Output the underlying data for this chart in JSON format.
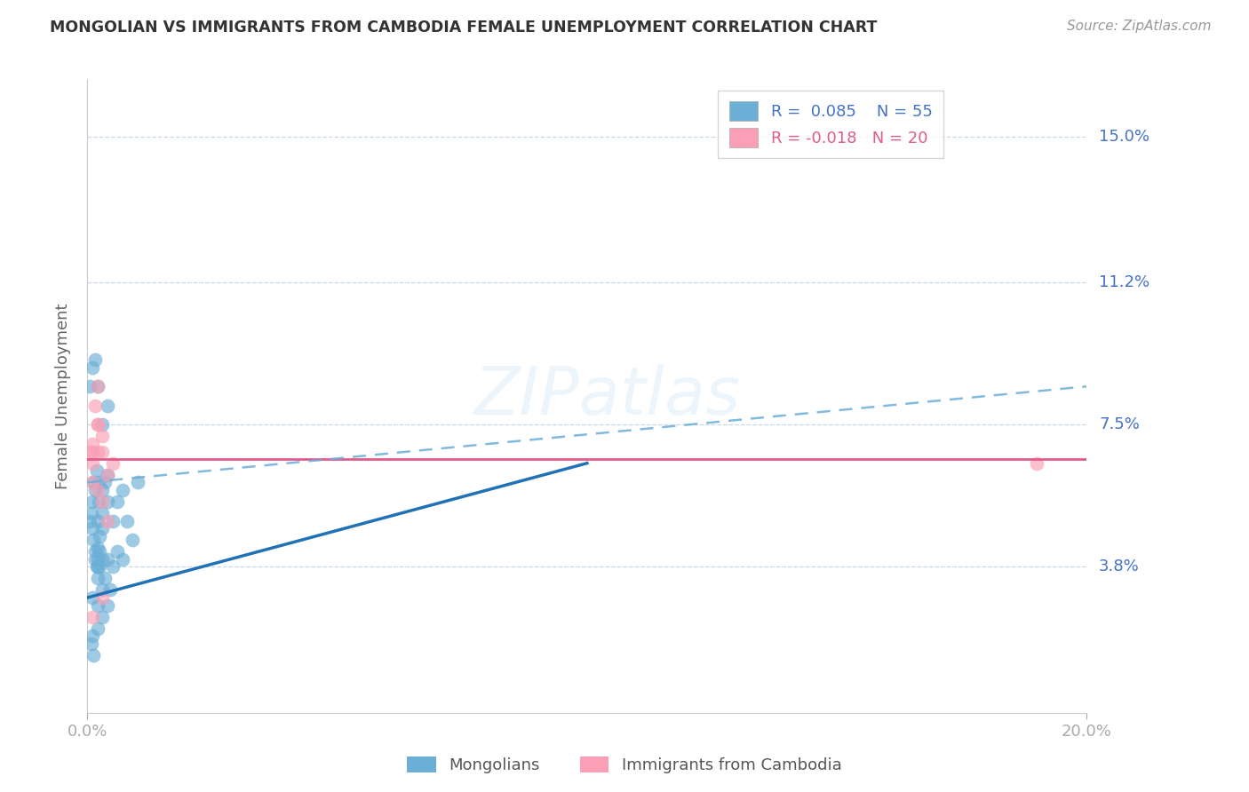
{
  "title": "MONGOLIAN VS IMMIGRANTS FROM CAMBODIA FEMALE UNEMPLOYMENT CORRELATION CHART",
  "source": "Source: ZipAtlas.com",
  "xlabel_ticks": [
    "0.0%",
    "20.0%"
  ],
  "ylabel_ticks": [
    "3.8%",
    "7.5%",
    "11.2%",
    "15.0%"
  ],
  "ylabel_values": [
    0.038,
    0.075,
    0.112,
    0.15
  ],
  "xmin": 0.0,
  "xmax": 0.2,
  "ymin": 0.0,
  "ymax": 0.165,
  "mongolian_R": 0.085,
  "mongolian_N": 55,
  "cambodia_R": -0.018,
  "cambodia_N": 20,
  "blue_color": "#6baed6",
  "pink_color": "#fa9fb5",
  "blue_line_color": "#2171b5",
  "pink_line_color": "#e05c8a",
  "dashed_line_color": "#6baed6",
  "watermark": "ZIPatlas",
  "legend_label_mongolian": "Mongolians",
  "legend_label_cambodia": "Immigrants from Cambodia",
  "mongolian_x": [
    0.0005,
    0.0008,
    0.001,
    0.001,
    0.0012,
    0.0012,
    0.0015,
    0.0015,
    0.0015,
    0.0018,
    0.0018,
    0.002,
    0.002,
    0.002,
    0.002,
    0.002,
    0.0022,
    0.0022,
    0.0025,
    0.0025,
    0.0025,
    0.003,
    0.003,
    0.003,
    0.003,
    0.0035,
    0.0035,
    0.004,
    0.004,
    0.004,
    0.0045,
    0.005,
    0.005,
    0.006,
    0.006,
    0.007,
    0.007,
    0.008,
    0.009,
    0.01,
    0.0005,
    0.001,
    0.0015,
    0.002,
    0.003,
    0.004,
    0.001,
    0.002,
    0.003,
    0.002,
    0.001,
    0.0008,
    0.0012,
    0.004,
    0.003
  ],
  "mongolian_y": [
    0.05,
    0.052,
    0.048,
    0.055,
    0.045,
    0.06,
    0.04,
    0.042,
    0.058,
    0.038,
    0.063,
    0.035,
    0.038,
    0.04,
    0.043,
    0.05,
    0.055,
    0.06,
    0.038,
    0.042,
    0.046,
    0.04,
    0.048,
    0.052,
    0.058,
    0.035,
    0.06,
    0.04,
    0.055,
    0.062,
    0.032,
    0.038,
    0.05,
    0.042,
    0.055,
    0.04,
    0.058,
    0.05,
    0.045,
    0.06,
    0.085,
    0.09,
    0.092,
    0.085,
    0.075,
    0.08,
    0.03,
    0.028,
    0.025,
    0.022,
    0.02,
    0.018,
    0.015,
    0.028,
    0.032
  ],
  "cambodia_x": [
    0.0005,
    0.001,
    0.001,
    0.0015,
    0.002,
    0.002,
    0.003,
    0.003,
    0.004,
    0.005,
    0.001,
    0.002,
    0.003,
    0.004,
    0.001,
    0.002,
    0.003,
    0.001,
    0.002,
    0.19
  ],
  "cambodia_y": [
    0.068,
    0.07,
    0.065,
    0.08,
    0.085,
    0.075,
    0.068,
    0.072,
    0.062,
    0.065,
    0.06,
    0.058,
    0.055,
    0.05,
    0.068,
    0.075,
    0.03,
    0.025,
    0.068,
    0.065
  ],
  "blue_trendline_x": [
    0.0,
    0.1
  ],
  "blue_trendline_y": [
    0.03,
    0.065
  ],
  "pink_trendline_x": [
    0.0,
    0.2
  ],
  "pink_trendline_y": [
    0.066,
    0.066
  ],
  "dashed_trendline_x": [
    0.0,
    0.2
  ],
  "dashed_trendline_y": [
    0.06,
    0.085
  ]
}
